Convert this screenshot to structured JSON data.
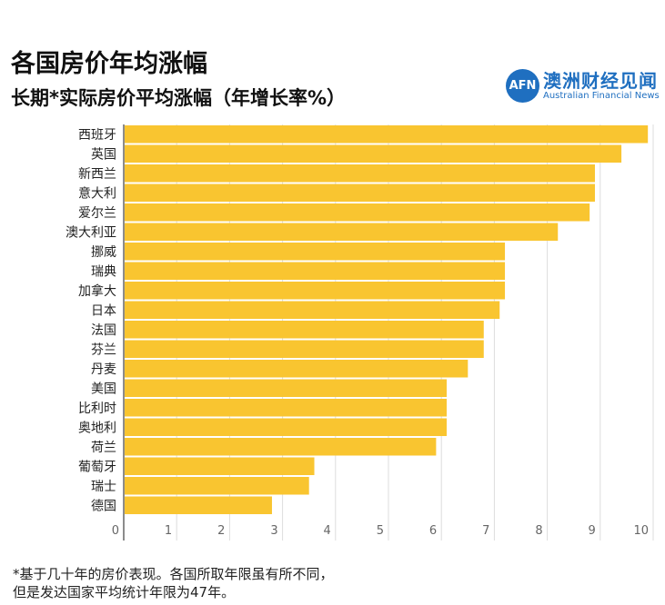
{
  "header": {
    "title": "各国房价年均涨幅",
    "subtitle": "长期*实际房价平均涨幅（年增长率%）"
  },
  "logo": {
    "mark": "AFN",
    "name_cn": "澳洲财经见闻",
    "name_en": "Australian Financial News"
  },
  "footnote": [
    "*基于几十年的房价表现。各国所取年限虽有所不同，",
    "但是发达国家平均统计年限为47年。"
  ],
  "chart_data": {
    "type": "bar",
    "orientation": "horizontal",
    "title": "各国房价年均涨幅",
    "subtitle": "长期*实际房价平均涨幅（年增长率%）",
    "categories": [
      "西班牙",
      "英国",
      "新西兰",
      "意大利",
      "爱尔兰",
      "澳大利亚",
      "挪威",
      "瑞典",
      "加拿大",
      "日本",
      "法国",
      "芬兰",
      "丹麦",
      "美国",
      "比利时",
      "奥地利",
      "荷兰",
      "葡萄牙",
      "瑞士",
      "德国"
    ],
    "values": [
      9.9,
      9.4,
      8.9,
      8.9,
      8.8,
      8.2,
      7.2,
      7.2,
      7.2,
      7.1,
      6.8,
      6.8,
      6.5,
      6.1,
      6.1,
      6.1,
      5.9,
      3.6,
      3.5,
      2.8
    ],
    "xlim": [
      0,
      10
    ],
    "xticks": [
      "0",
      "1",
      "2",
      "3",
      "4",
      "5",
      "6",
      "7",
      "8",
      "9",
      "10"
    ],
    "grid": true,
    "bar_color": "#f9c530"
  }
}
